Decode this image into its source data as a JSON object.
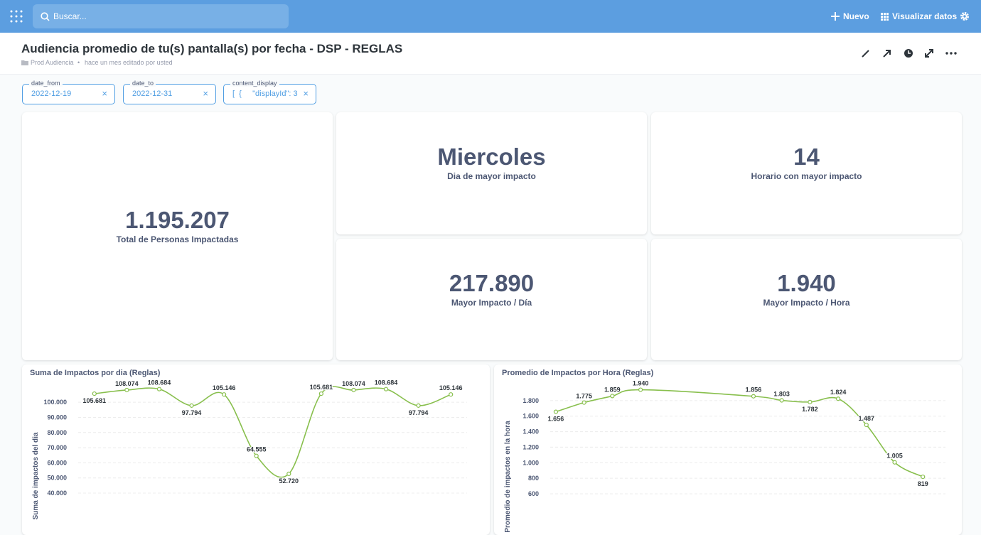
{
  "topbar": {
    "search_placeholder": "Buscar...",
    "new": "Nuevo",
    "browse": "Visualizar datos"
  },
  "header": {
    "title": "Audiencia promedio de tu(s) pantalla(s) por fecha - DSP - REGLAS",
    "collection": "Prod Audiencia",
    "edited": "hace un mes editado por usted"
  },
  "filters": [
    {
      "label": "date_from",
      "value": "2022-12-19"
    },
    {
      "label": "date_to",
      "value": "2022-12-31"
    },
    {
      "label": "content_display",
      "value": "[  {     \"displayId\": 3"
    }
  ],
  "cards": [
    {
      "value": "1.195.207",
      "label": "Total de Personas Impactadas"
    },
    {
      "value": "Miercoles",
      "label": "Dia de mayor impacto"
    },
    {
      "value": "14",
      "label": "Horario con mayor impacto"
    },
    {
      "value": "217.890",
      "label": "Mayor Impacto / Día"
    },
    {
      "value": "1.940",
      "label": "Mayor Impacto / Hora"
    }
  ],
  "charts": [
    {
      "type": "line",
      "title": "Suma de Impactos por dia (Reglas)",
      "y_label": "Suma de impactos del dia",
      "color": "#88bf4d",
      "grid": true,
      "values": [
        105681,
        108074,
        108684,
        97794,
        105146,
        64555,
        52720,
        105681,
        108074,
        108684,
        97794,
        105146
      ],
      "value_labels": [
        "105.681",
        "108.074",
        "108.684",
        "97.794",
        "105.146",
        "64.555",
        "52.720",
        "105.681",
        "108.074",
        "108.684",
        "97.794",
        "105.146"
      ],
      "ylim": [
        40000,
        112000
      ],
      "yticks": [
        {
          "value": 40000,
          "label": "40.000"
        },
        {
          "value": 50000,
          "label": "50.000"
        },
        {
          "value": 60000,
          "label": "60.000"
        },
        {
          "value": 70000,
          "label": "70.000"
        },
        {
          "value": 80000,
          "label": "80.000"
        },
        {
          "value": 90000,
          "label": "90.000"
        },
        {
          "value": 100000,
          "label": "100.000"
        }
      ]
    },
    {
      "type": "line",
      "title": "Promedio de Impactos por Hora (Reglas)",
      "y_label": "Promedio de impactos en la hora",
      "color": "#88bf4d",
      "grid": true,
      "x": [
        11,
        12,
        13,
        14,
        18,
        19,
        20,
        21,
        22,
        23,
        24
      ],
      "xlim": [
        10.8,
        24.8
      ],
      "values": [
        1656,
        1775,
        1859,
        1940,
        1856,
        1803,
        1782,
        1824,
        1487,
        1005,
        819
      ],
      "value_labels": [
        "1.656",
        "1.775",
        "1.859",
        "1.940",
        "1.856",
        "1.803",
        "1.782",
        "1.824",
        "1.487",
        "1.005",
        "819"
      ],
      "ylim": [
        600,
        2000
      ],
      "yticks": [
        {
          "value": 600,
          "label": "600"
        },
        {
          "value": 800,
          "label": "800"
        },
        {
          "value": 1000,
          "label": "1.000"
        },
        {
          "value": 1200,
          "label": "1.200"
        },
        {
          "value": 1400,
          "label": "1.400"
        },
        {
          "value": 1600,
          "label": "1.600"
        },
        {
          "value": 1800,
          "label": "1.800"
        }
      ]
    }
  ]
}
